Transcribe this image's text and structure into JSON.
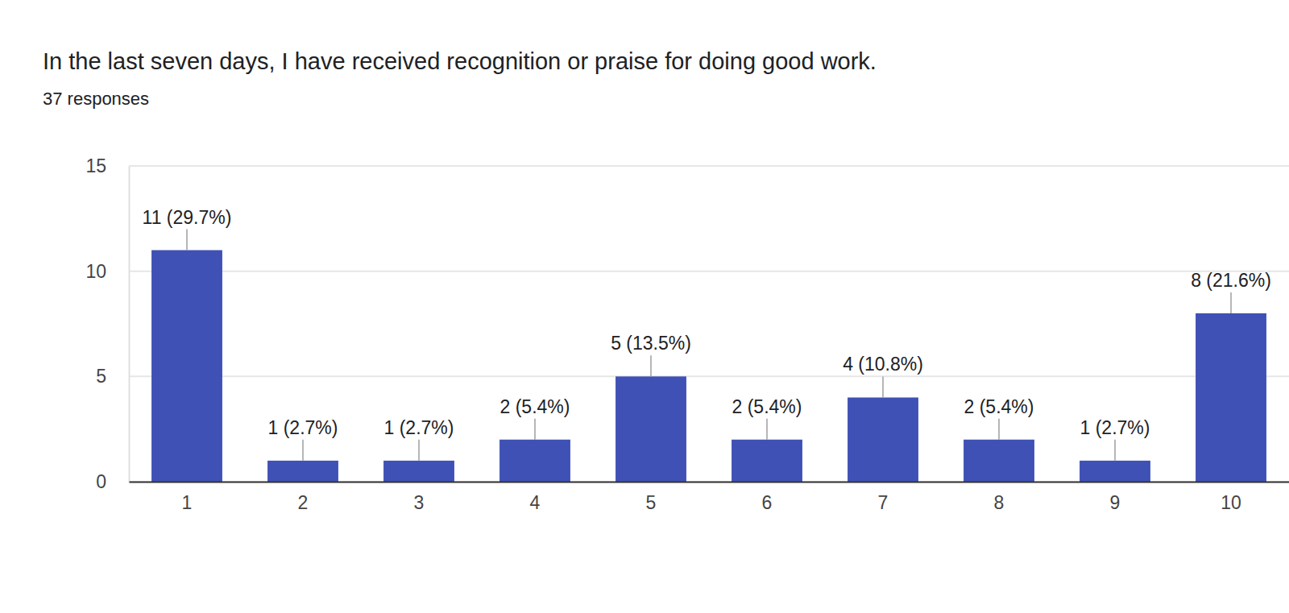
{
  "chart_data": {
    "type": "bar",
    "title": "In the last seven days, I have received recognition or praise for doing good work.",
    "subtitle": "37 responses",
    "categories": [
      "1",
      "2",
      "3",
      "4",
      "5",
      "6",
      "7",
      "8",
      "9",
      "10"
    ],
    "values": [
      11,
      1,
      1,
      2,
      5,
      2,
      4,
      2,
      1,
      8
    ],
    "value_labels": [
      "11 (29.7%)",
      "1 (2.7%)",
      "1 (2.7%)",
      "2 (5.4%)",
      "5 (13.5%)",
      "2 (5.4%)",
      "4 (10.8%)",
      "2 (5.4%)",
      "1 (2.7%)",
      "8 (21.6%)"
    ],
    "color": "#3f51b5",
    "ylim": [
      0,
      15
    ],
    "yticks": [
      0,
      5,
      10,
      15
    ],
    "grid": true,
    "data_labels": true
  }
}
